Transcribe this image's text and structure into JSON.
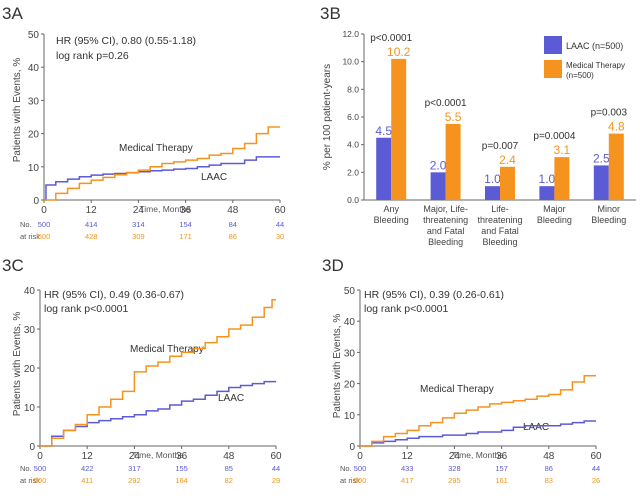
{
  "colors": {
    "laac": "#5b5bd6",
    "medical": "#f5931e",
    "axis": "#666666",
    "text": "#333333"
  },
  "panels": {
    "a": {
      "label": "3A",
      "stat_hr": "HR (95% CI), 0.80 (0.55-1.18)",
      "stat_logrank": "log rank p=0.26",
      "series_label_medical": "Medical Therapy",
      "series_label_laac": "LAAC",
      "ylabel": "Patients with Events, %",
      "xlabel": "Time, Months",
      "at_risk_label_1": "No.",
      "at_risk_label_2": "at risk",
      "at_risk_laac": [
        "500",
        "414",
        "314",
        "154",
        "84",
        "44"
      ],
      "at_risk_medical": [
        "500",
        "428",
        "309",
        "171",
        "86",
        "30"
      ]
    },
    "b": {
      "label": "3B",
      "ylabel": "% per 100 patient-years",
      "legend_laac": "LAAC (n=500)",
      "legend_medical": "Medical Therapy (n=500)"
    },
    "c": {
      "label": "3C",
      "stat_hr": "HR (95% CI), 0.49 (0.36-0.67)",
      "stat_logrank": "log rank p<0.0001",
      "series_label_medical": "Medical Therapy",
      "series_label_laac": "LAAC",
      "ylabel": "Patients with Events, %",
      "xlabel": "Time, Months",
      "at_risk_label_1": "No.",
      "at_risk_label_2": "at risk",
      "at_risk_laac": [
        "500",
        "422",
        "317",
        "155",
        "85",
        "44"
      ],
      "at_risk_medical": [
        "500",
        "411",
        "292",
        "164",
        "82",
        "29"
      ]
    },
    "d": {
      "label": "3D",
      "stat_hr": "HR (95% CI), 0.39 (0.26-0.61)",
      "stat_logrank": "log rank p<0.0001",
      "series_label_medical": "Medical Therapy",
      "series_label_laac": "LAAC",
      "ylabel": "Patients with Events, %",
      "xlabel": "Time, Months",
      "at_risk_label_1": "No.",
      "at_risk_label_2": "at risk",
      "at_risk_laac": [
        "500",
        "433",
        "328",
        "157",
        "86",
        "44"
      ],
      "at_risk_medical": [
        "500",
        "417",
        "295",
        "161",
        "83",
        "26"
      ]
    }
  },
  "chart_data": [
    {
      "panel": "a",
      "type": "line",
      "xlabel": "Time, Months",
      "ylabel": "Patients with Events, %",
      "xlim": [
        0,
        60
      ],
      "ylim": [
        0,
        50
      ],
      "xticks": [
        0,
        12,
        24,
        36,
        48,
        60
      ],
      "yticks": [
        0,
        10,
        20,
        30,
        40,
        50
      ],
      "series": [
        {
          "name": "LAAC",
          "color": "#5b5bd6",
          "x": [
            0,
            0.5,
            3,
            6,
            9,
            12,
            15,
            18,
            21,
            24,
            27,
            30,
            33,
            36,
            39,
            42,
            45,
            48,
            51,
            54,
            57,
            60
          ],
          "y": [
            0,
            4.5,
            5.5,
            6.3,
            7,
            7.5,
            7.8,
            8,
            8.2,
            8.5,
            8.8,
            9,
            9.3,
            9.5,
            10,
            10.5,
            11,
            11,
            12,
            13,
            13,
            13
          ]
        },
        {
          "name": "Medical Therapy",
          "color": "#f5931e",
          "x": [
            0,
            3,
            6,
            9,
            12,
            15,
            18,
            21,
            24,
            27,
            30,
            33,
            36,
            39,
            42,
            45,
            48,
            51,
            54,
            57,
            60
          ],
          "y": [
            0,
            2,
            3.5,
            5,
            6,
            6.8,
            7.6,
            8.3,
            9,
            10,
            11,
            11.5,
            12,
            12.5,
            13.5,
            14,
            15.5,
            17,
            20,
            22,
            22
          ]
        }
      ]
    },
    {
      "panel": "b",
      "type": "bar",
      "ylabel": "% per 100 patient-years",
      "ylim": [
        0,
        12
      ],
      "yticks": [
        0,
        2,
        4,
        6,
        8,
        10,
        12
      ],
      "categories": [
        [
          "Any",
          "Bleeding"
        ],
        [
          "Major, Life-",
          "threatening",
          "and Fatal",
          "Bleeding"
        ],
        [
          "Life-",
          "threatening",
          "and Fatal",
          "Bleeding"
        ],
        [
          "Major",
          "Bleeding"
        ],
        [
          "Minor",
          "Bleeding"
        ]
      ],
      "p_values": [
        "p<0.0001",
        "p<0.0001",
        "p=0.007",
        "p=0.0004",
        "p=0.003"
      ],
      "series": [
        {
          "name": "LAAC (n=500)",
          "color": "#5b5bd6",
          "values": [
            4.5,
            2.0,
            1.0,
            1.0,
            2.5
          ],
          "labels": [
            "4.5",
            "2.0",
            "1.0",
            "1.0",
            "2.5"
          ]
        },
        {
          "name": "Medical Therapy (n=500)",
          "color": "#f5931e",
          "values": [
            10.2,
            5.5,
            2.4,
            3.1,
            4.8
          ],
          "labels": [
            "10.2",
            "5.5",
            "2.4",
            "3.1",
            "4.8"
          ]
        }
      ],
      "legend": "top-right"
    },
    {
      "panel": "c",
      "type": "line",
      "xlabel": "Time, Months",
      "ylabel": "Patients with Events, %",
      "xlim": [
        0,
        60
      ],
      "ylim": [
        0,
        40
      ],
      "xticks": [
        0,
        12,
        24,
        36,
        48,
        60
      ],
      "yticks": [
        0,
        10,
        20,
        30,
        40
      ],
      "series": [
        {
          "name": "LAAC",
          "color": "#5b5bd6",
          "x": [
            0,
            3,
            6,
            9,
            12,
            15,
            18,
            21,
            24,
            27,
            30,
            33,
            36,
            39,
            42,
            45,
            48,
            51,
            54,
            57,
            60
          ],
          "y": [
            0,
            2.5,
            4,
            5,
            6,
            6.5,
            7,
            7.5,
            8,
            9,
            9.5,
            10.5,
            11.5,
            12,
            13,
            14,
            15,
            15.5,
            16,
            16.5,
            16.5
          ]
        },
        {
          "name": "Medical Therapy",
          "color": "#f5931e",
          "x": [
            0,
            3,
            6,
            9,
            12,
            15,
            18,
            21,
            24,
            27,
            30,
            33,
            36,
            39,
            42,
            45,
            48,
            51,
            54,
            57,
            59,
            60
          ],
          "y": [
            0,
            2,
            4,
            5.5,
            8,
            10,
            12,
            14,
            19,
            20.5,
            21.5,
            23,
            24,
            25,
            26.5,
            28,
            30,
            31,
            33,
            35.5,
            37.5,
            37.5
          ]
        }
      ]
    },
    {
      "panel": "d",
      "type": "line",
      "xlabel": "Time, Months",
      "ylabel": "Patients with Events, %",
      "xlim": [
        0,
        60
      ],
      "ylim": [
        0,
        50
      ],
      "xticks": [
        0,
        12,
        24,
        36,
        48,
        60
      ],
      "yticks": [
        0,
        10,
        20,
        30,
        40,
        50
      ],
      "series": [
        {
          "name": "LAAC",
          "color": "#5b5bd6",
          "x": [
            0,
            3,
            6,
            9,
            12,
            15,
            18,
            21,
            24,
            27,
            30,
            33,
            36,
            39,
            42,
            45,
            48,
            51,
            54,
            57,
            60
          ],
          "y": [
            0,
            1,
            1.5,
            2,
            2.5,
            3,
            3,
            3.5,
            3.5,
            4,
            4.5,
            4.5,
            5,
            6,
            6.5,
            6.5,
            6.5,
            7,
            7.5,
            8,
            8
          ]
        },
        {
          "name": "Medical Therapy",
          "color": "#f5931e",
          "x": [
            0,
            3,
            6,
            9,
            12,
            15,
            18,
            21,
            24,
            27,
            30,
            33,
            36,
            39,
            42,
            45,
            48,
            51,
            54,
            57,
            60
          ],
          "y": [
            0,
            1.5,
            3,
            4,
            5,
            6.5,
            7.5,
            9,
            10.5,
            11.5,
            12.5,
            13.5,
            14,
            14.5,
            15,
            16,
            16.5,
            18,
            20.5,
            22.5,
            22.5
          ]
        }
      ]
    }
  ]
}
